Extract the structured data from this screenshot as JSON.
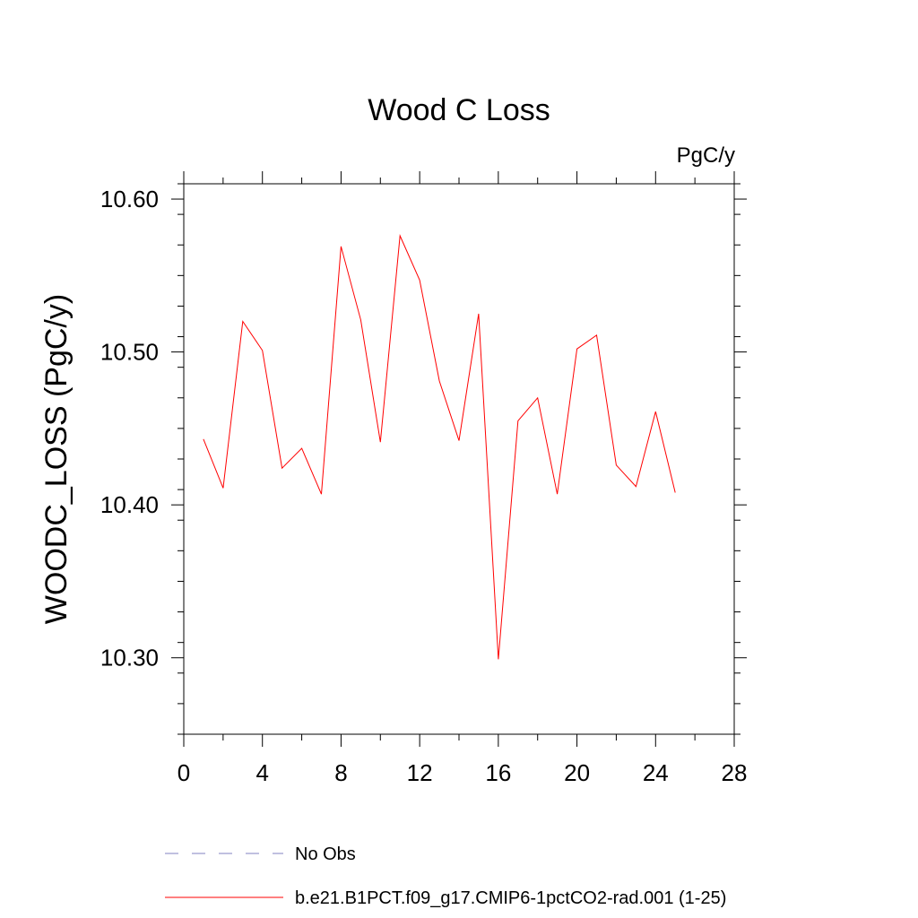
{
  "chart_data": {
    "type": "line",
    "title": "Wood C Loss",
    "units_label": "PgC/y",
    "xlabel": "",
    "ylabel": "WOODC_LOSS  (PgC/y)",
    "xlim": [
      0,
      28
    ],
    "ylim": [
      10.25,
      10.61
    ],
    "x_ticks": [
      0,
      4,
      8,
      12,
      16,
      20,
      24,
      28
    ],
    "x_tick_labels": [
      "0",
      "4",
      "8",
      "12",
      "16",
      "20",
      "24",
      "28"
    ],
    "y_ticks": [
      10.3,
      10.4,
      10.5,
      10.6
    ],
    "y_tick_labels": [
      "10.30",
      "10.40",
      "10.50",
      "10.60"
    ],
    "grid": false,
    "legend_placement": "bottom",
    "series": [
      {
        "name": "b.e21.B1PCT.f09_g17.CMIP6-1pctCO2-rad.001 (1-25)",
        "color": "#ff0000",
        "style": "solid",
        "x": [
          1,
          2,
          3,
          4,
          5,
          6,
          7,
          8,
          9,
          10,
          11,
          12,
          13,
          14,
          15,
          16,
          17,
          18,
          19,
          20,
          21,
          22,
          23,
          24,
          25
        ],
        "y": [
          10.443,
          10.411,
          10.52,
          10.501,
          10.424,
          10.437,
          10.407,
          10.569,
          10.521,
          10.441,
          10.576,
          10.547,
          10.481,
          10.442,
          10.525,
          10.299,
          10.455,
          10.47,
          10.407,
          10.502,
          10.511,
          10.426,
          10.412,
          10.461,
          10.408
        ]
      }
    ],
    "legend": [
      {
        "label": "No Obs",
        "color": "#8080c0",
        "style": "dashed"
      },
      {
        "label": "b.e21.B1PCT.f09_g17.CMIP6-1pctCO2-rad.001 (1-25)",
        "color": "#ff0000",
        "style": "solid"
      }
    ]
  }
}
